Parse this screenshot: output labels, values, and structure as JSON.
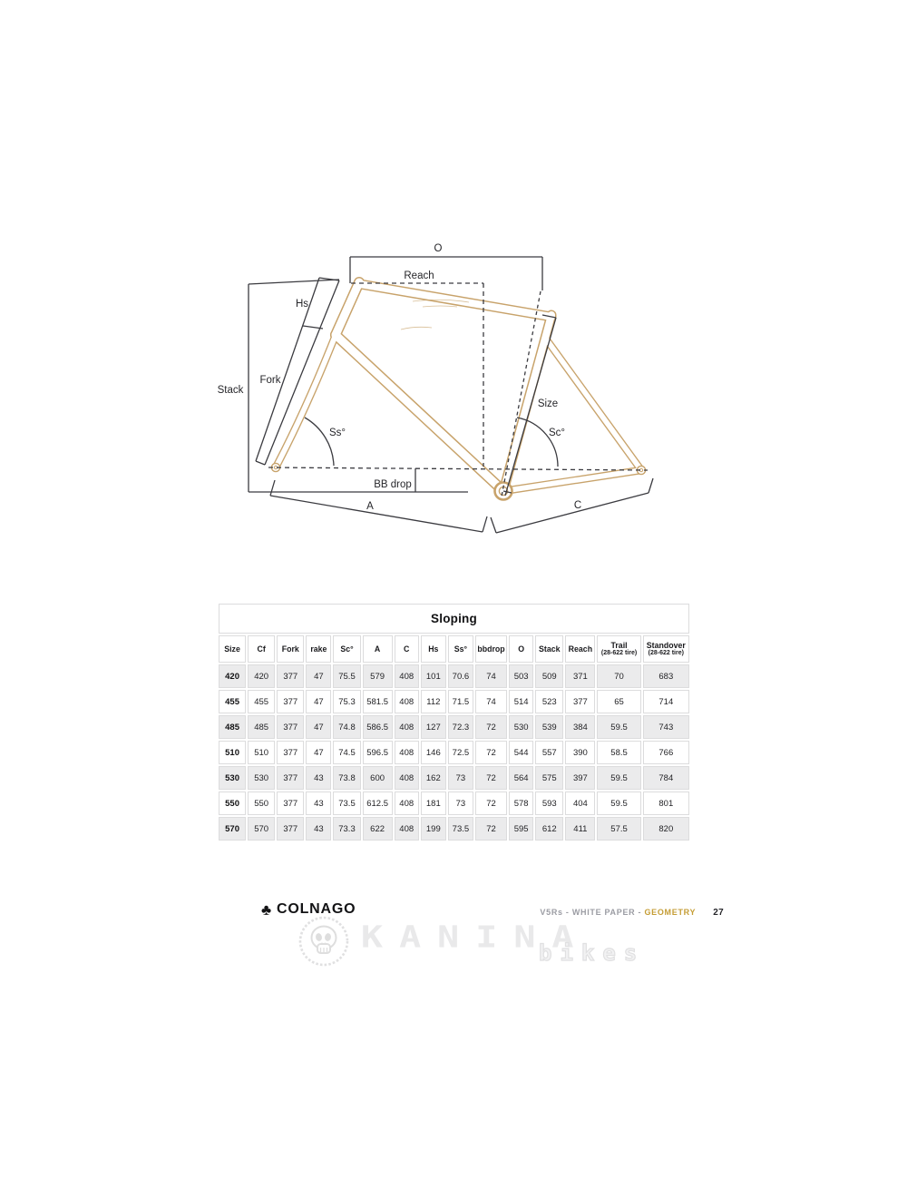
{
  "diagram": {
    "labels": {
      "o": "O",
      "reach": "Reach",
      "hs": "Hs",
      "fork": "Fork",
      "stack": "Stack",
      "ss_angle": "Ss°",
      "sc_angle": "Sc°",
      "size": "Size",
      "bb_drop": "BB drop",
      "a": "A",
      "c": "C"
    },
    "colors": {
      "frame": "#c8a36b",
      "measure_lines": "#3b3b40"
    }
  },
  "table": {
    "title": "Sloping",
    "columns": [
      {
        "label": "Size"
      },
      {
        "label": "Cf"
      },
      {
        "label": "Fork"
      },
      {
        "label": "rake"
      },
      {
        "label": "Sc°"
      },
      {
        "label": "A"
      },
      {
        "label": "C"
      },
      {
        "label": "Hs"
      },
      {
        "label": "Ss°"
      },
      {
        "label": "bbdrop"
      },
      {
        "label": "O"
      },
      {
        "label": "Stack"
      },
      {
        "label": "Reach"
      },
      {
        "label": "Trail",
        "sub": "(28-622 tire)"
      },
      {
        "label": "Standover",
        "sub": "(28-622 tire)"
      }
    ],
    "rows": [
      [
        "420",
        "420",
        "377",
        "47",
        "75.5",
        "579",
        "408",
        "101",
        "70.6",
        "74",
        "503",
        "509",
        "371",
        "70",
        "683"
      ],
      [
        "455",
        "455",
        "377",
        "47",
        "75.3",
        "581.5",
        "408",
        "112",
        "71.5",
        "74",
        "514",
        "523",
        "377",
        "65",
        "714"
      ],
      [
        "485",
        "485",
        "377",
        "47",
        "74.8",
        "586.5",
        "408",
        "127",
        "72.3",
        "72",
        "530",
        "539",
        "384",
        "59.5",
        "743"
      ],
      [
        "510",
        "510",
        "377",
        "47",
        "74.5",
        "596.5",
        "408",
        "146",
        "72.5",
        "72",
        "544",
        "557",
        "390",
        "58.5",
        "766"
      ],
      [
        "530",
        "530",
        "377",
        "43",
        "73.8",
        "600",
        "408",
        "162",
        "73",
        "72",
        "564",
        "575",
        "397",
        "59.5",
        "784"
      ],
      [
        "550",
        "550",
        "377",
        "43",
        "73.5",
        "612.5",
        "408",
        "181",
        "73",
        "72",
        "578",
        "593",
        "404",
        "59.5",
        "801"
      ],
      [
        "570",
        "570",
        "377",
        "43",
        "73.3",
        "622",
        "408",
        "199",
        "73.5",
        "72",
        "595",
        "612",
        "411",
        "57.5",
        "820"
      ]
    ]
  },
  "footer": {
    "brand": "COLNAGO",
    "doc_ref": "V5Rs - WHITE PAPER - ",
    "doc_section": "GEOMETRY",
    "page_number": "27",
    "accent_color": "#c59d35"
  },
  "watermark": {
    "name": "KANINA",
    "sub": "bikes"
  }
}
